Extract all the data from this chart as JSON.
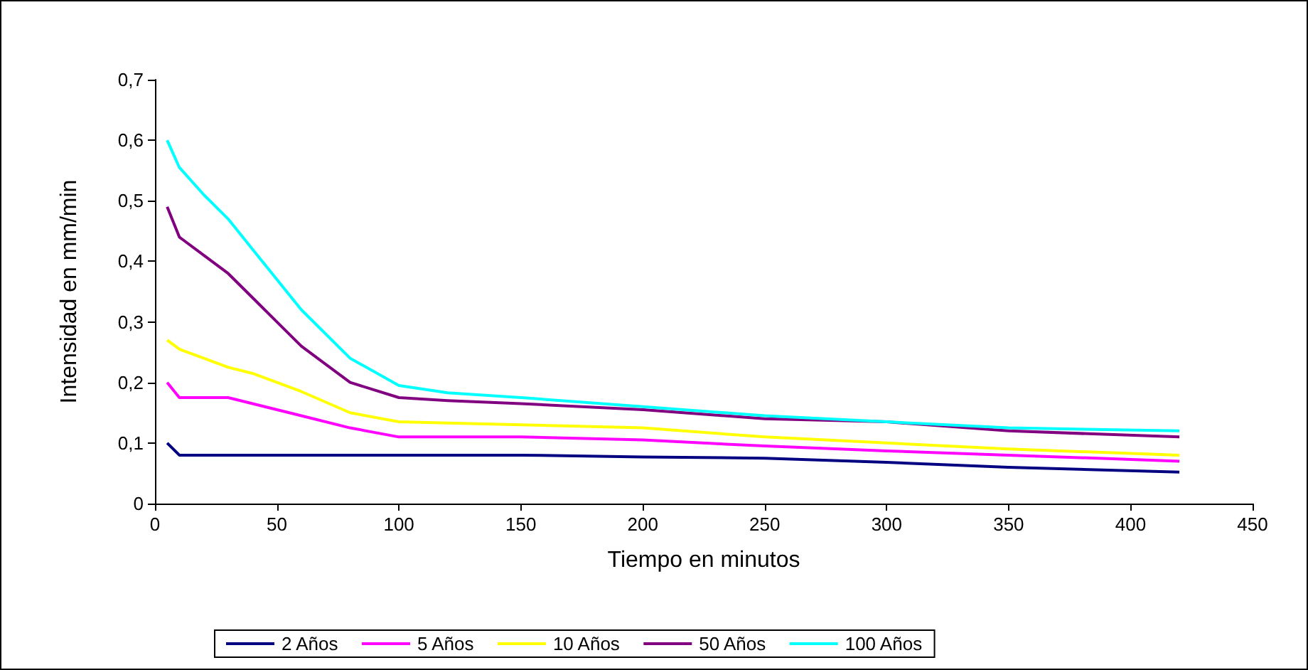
{
  "chart_data": {
    "type": "line",
    "xlabel": "Tiempo en minutos",
    "ylabel": "Intensidad en mm/min",
    "x": [
      5,
      10,
      20,
      30,
      40,
      50,
      60,
      80,
      100,
      120,
      150,
      200,
      250,
      300,
      350,
      420
    ],
    "series": [
      {
        "name": "2 Años",
        "color": "#000080",
        "values": [
          0.1,
          0.08,
          0.08,
          0.08,
          0.08,
          0.08,
          0.08,
          0.08,
          0.08,
          0.08,
          0.08,
          0.077,
          0.075,
          0.068,
          0.06,
          0.052
        ]
      },
      {
        "name": "5 Años",
        "color": "#ff00ff",
        "values": [
          0.2,
          0.175,
          0.175,
          0.175,
          0.165,
          0.155,
          0.145,
          0.125,
          0.11,
          0.11,
          0.11,
          0.105,
          0.095,
          0.087,
          0.08,
          0.07
        ]
      },
      {
        "name": "10 Años",
        "color": "#ffff00",
        "values": [
          0.27,
          0.255,
          0.24,
          0.225,
          0.215,
          0.2,
          0.185,
          0.15,
          0.135,
          0.133,
          0.13,
          0.125,
          0.11,
          0.1,
          0.09,
          0.08
        ]
      },
      {
        "name": "50 Años",
        "color": "#800080",
        "values": [
          0.49,
          0.44,
          0.41,
          0.38,
          0.34,
          0.3,
          0.26,
          0.2,
          0.175,
          0.17,
          0.165,
          0.155,
          0.14,
          0.135,
          0.12,
          0.11
        ]
      },
      {
        "name": "100 Años",
        "color": "#00ffff",
        "values": [
          0.6,
          0.555,
          0.51,
          0.47,
          0.42,
          0.37,
          0.32,
          0.24,
          0.195,
          0.183,
          0.175,
          0.16,
          0.145,
          0.135,
          0.125,
          0.12
        ]
      }
    ],
    "xlim": [
      0,
      450
    ],
    "xticks": [
      0,
      50,
      100,
      150,
      200,
      250,
      300,
      350,
      400,
      450
    ],
    "ylim": [
      0,
      0.7
    ],
    "yticks": [
      0,
      {
        "value": 0.1,
        "label": "0,1"
      },
      {
        "value": 0.2,
        "label": "0,2"
      },
      {
        "value": 0.3,
        "label": "0,3"
      },
      {
        "value": 0.4,
        "label": "0,4"
      },
      {
        "value": 0.5,
        "label": "0,5"
      },
      {
        "value": 0.6,
        "label": "0,6"
      },
      {
        "value": 0.7,
        "label": "0,7"
      }
    ],
    "grid": false,
    "legend": "bottom",
    "marker": "none",
    "line_style": "solid"
  }
}
